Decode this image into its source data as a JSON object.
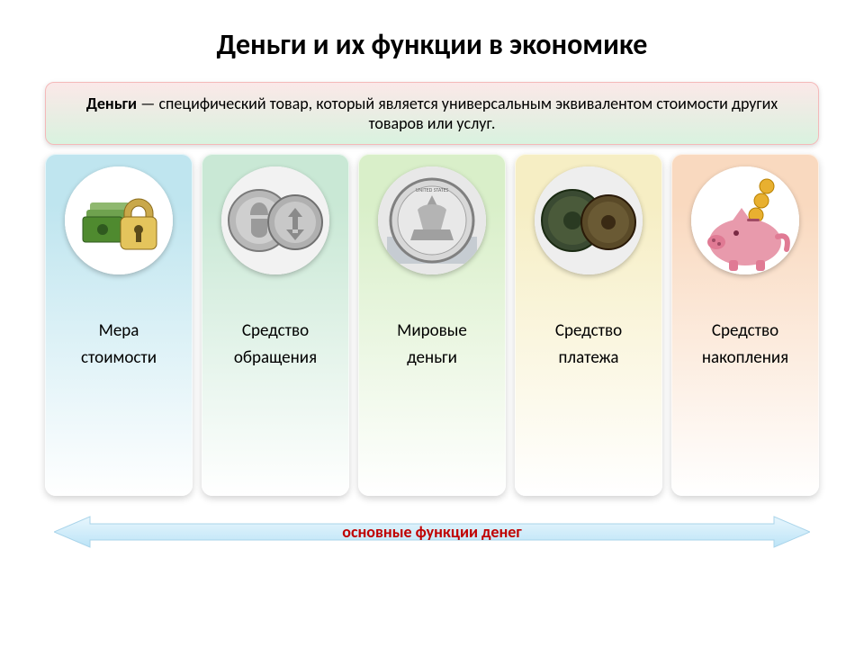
{
  "title": {
    "text": "Деньги и их функции в экономике",
    "fontsize": 32
  },
  "definition": {
    "bold": "Деньги",
    "rest": " — специфический товар, который является универсальным эквивалентом стоимости других товаров или услуг.",
    "fontsize": 18,
    "bg_top": "#fbe8e8",
    "bg_bottom": "#d9f2df",
    "border": "#f4b9b9"
  },
  "columns": [
    {
      "label": "Мера\nстоимости",
      "grad_top": "#bfe5ef",
      "grad_bottom": "#ffffff",
      "icon_bg": "#ffffff",
      "icon": "lock-money"
    },
    {
      "label": "Средство\nобращения",
      "grad_top": "#c9e8d5",
      "grad_bottom": "#ffffff",
      "icon_bg": "#f2f2f2",
      "icon": "two-silver-coins"
    },
    {
      "label": "Мировые\nденьги",
      "grad_top": "#d9efc9",
      "grad_bottom": "#ffffff",
      "icon_bg": "#e8e8e8",
      "icon": "silver-dollar"
    },
    {
      "label": "Средство\nплатежа",
      "grad_top": "#f6eec4",
      "grad_bottom": "#ffffff",
      "icon_bg": "#eeeeee",
      "icon": "two-bronze-coins"
    },
    {
      "label": "Средство\nнакопления",
      "grad_top": "#f9d9bf",
      "grad_bottom": "#ffffff",
      "icon_bg": "#ffffff",
      "icon": "piggy-bank"
    }
  ],
  "label_fontsize": 19,
  "arrow": {
    "text": "основные функции денег",
    "fontsize": 18,
    "fill_left": "#cfefff",
    "fill_right": "#bce4f7",
    "stroke": "#a9d4ea",
    "text_color": "#c00000"
  }
}
